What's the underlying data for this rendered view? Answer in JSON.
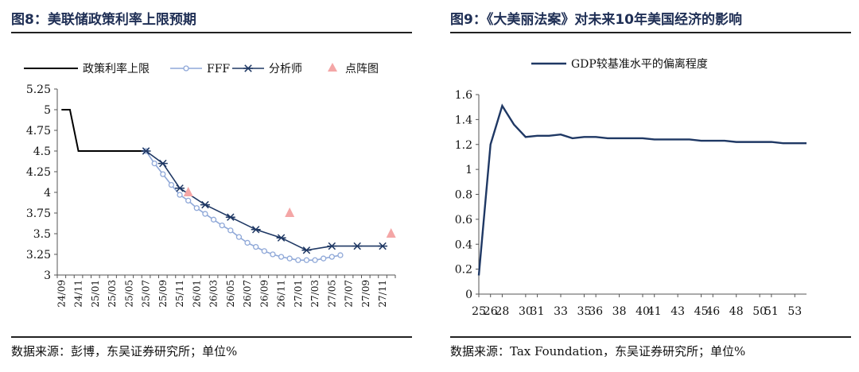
{
  "left_panel": {
    "title": "图8：美联储政策利率上限预期",
    "source": "数据来源：彭博，东吴证券研究所；单位%"
  },
  "right_panel": {
    "title": "图9：《大美丽法案》对未来10年美国经济的影响",
    "source": "数据来源：Tax Foundation，东吴证券研究所；单位%"
  },
  "chart_data": [
    {
      "type": "line",
      "title": "",
      "x": [
        "24/09",
        "24/10",
        "24/11",
        "24/12",
        "25/01",
        "25/02",
        "25/03",
        "25/04",
        "25/05",
        "25/06",
        "25/07",
        "25/08",
        "25/09",
        "25/10",
        "25/11",
        "25/12",
        "26/01",
        "26/02",
        "26/03",
        "26/04",
        "26/05",
        "26/06",
        "26/07",
        "26/08",
        "26/09",
        "26/10",
        "26/11",
        "26/12",
        "27/01",
        "27/02",
        "27/03",
        "27/04",
        "27/05",
        "27/06",
        "27/07",
        "27/08",
        "27/09",
        "27/10",
        "27/11",
        "27/12"
      ],
      "x_tick_labels": [
        "24/09",
        "24/11",
        "25/01",
        "25/03",
        "25/05",
        "25/07",
        "25/09",
        "25/11",
        "26/01",
        "26/03",
        "26/05",
        "26/07",
        "26/09",
        "26/11",
        "27/01",
        "27/03",
        "27/05",
        "27/07",
        "27/09",
        "27/11"
      ],
      "ylim": [
        3,
        5.25
      ],
      "y_ticks": [
        "3",
        "3.25",
        "3.5",
        "3.75",
        "4",
        "4.25",
        "4.5",
        "4.75",
        "5",
        "5.25"
      ],
      "legend_position": "top",
      "grid": false,
      "series": [
        {
          "name": "政策利率上限",
          "style": "line",
          "color": "#000000",
          "points": [
            [
              "24/09",
              5.0
            ],
            [
              "24/10",
              5.0
            ],
            [
              "24/11",
              4.5
            ],
            [
              "24/12",
              4.5
            ],
            [
              "25/01",
              4.5
            ],
            [
              "25/02",
              4.5
            ],
            [
              "25/03",
              4.5
            ],
            [
              "25/04",
              4.5
            ],
            [
              "25/05",
              4.5
            ],
            [
              "25/06",
              4.5
            ],
            [
              "25/07",
              4.5
            ]
          ]
        },
        {
          "name": "FFF",
          "style": "line-circle",
          "color": "#8fa8d8",
          "points": [
            [
              "25/07",
              4.5
            ],
            [
              "25/08",
              4.35
            ],
            [
              "25/09",
              4.22
            ],
            [
              "25/10",
              4.09
            ],
            [
              "25/11",
              3.97
            ],
            [
              "25/12",
              3.9
            ],
            [
              "26/01",
              3.81
            ],
            [
              "26/02",
              3.74
            ],
            [
              "26/03",
              3.67
            ],
            [
              "26/04",
              3.6
            ],
            [
              "26/05",
              3.54
            ],
            [
              "26/06",
              3.46
            ],
            [
              "26/07",
              3.39
            ],
            [
              "26/08",
              3.34
            ],
            [
              "26/09",
              3.29
            ],
            [
              "26/10",
              3.25
            ],
            [
              "26/11",
              3.22
            ],
            [
              "26/12",
              3.2
            ],
            [
              "27/01",
              3.18
            ],
            [
              "27/02",
              3.18
            ],
            [
              "27/03",
              3.18
            ],
            [
              "27/04",
              3.2
            ],
            [
              "27/05",
              3.22
            ],
            [
              "27/06",
              3.24
            ]
          ]
        },
        {
          "name": "分析师",
          "style": "line-star",
          "color": "#1f3864",
          "points": [
            [
              "25/07",
              4.5
            ],
            [
              "25/09",
              4.35
            ],
            [
              "25/11",
              4.05
            ],
            [
              "26/02",
              3.85
            ],
            [
              "26/05",
              3.7
            ],
            [
              "26/08",
              3.55
            ],
            [
              "26/11",
              3.45
            ],
            [
              "27/02",
              3.3
            ],
            [
              "27/05",
              3.35
            ],
            [
              "27/08",
              3.35
            ],
            [
              "27/11",
              3.35
            ]
          ]
        },
        {
          "name": "点阵图",
          "style": "triangle",
          "color": "#f4a6a6",
          "points": [
            [
              "25/12",
              4.0
            ],
            [
              "26/12",
              3.75
            ],
            [
              "27/12",
              3.5
            ]
          ]
        }
      ]
    },
    {
      "type": "line",
      "title": "",
      "x": [
        "25",
        "26",
        "28",
        "29",
        "30",
        "31",
        "32",
        "33",
        "34",
        "35",
        "36",
        "37",
        "38",
        "39",
        "40",
        "41",
        "42",
        "43",
        "44",
        "45",
        "46",
        "47",
        "48",
        "49",
        "50",
        "51",
        "52",
        "53",
        "54"
      ],
      "x_tick_labels": [
        "25",
        "26",
        "28",
        "30",
        "31",
        "33",
        "35",
        "36",
        "38",
        "40",
        "41",
        "43",
        "45",
        "46",
        "48",
        "50",
        "51",
        "53"
      ],
      "ylim": [
        0,
        1.6
      ],
      "y_ticks": [
        "0",
        "0.2",
        "0.4",
        "0.6",
        "0.8",
        "1",
        "1.2",
        "1.4",
        "1.6"
      ],
      "legend_position": "top",
      "grid": false,
      "series": [
        {
          "name": "GDP较基准水平的偏离程度",
          "color": "#1f3864",
          "values": [
            0.15,
            1.2,
            1.51,
            1.36,
            1.26,
            1.27,
            1.27,
            1.28,
            1.25,
            1.26,
            1.26,
            1.25,
            1.25,
            1.25,
            1.25,
            1.24,
            1.24,
            1.24,
            1.24,
            1.23,
            1.23,
            1.23,
            1.22,
            1.22,
            1.22,
            1.22,
            1.21,
            1.21,
            1.21
          ]
        }
      ]
    }
  ]
}
